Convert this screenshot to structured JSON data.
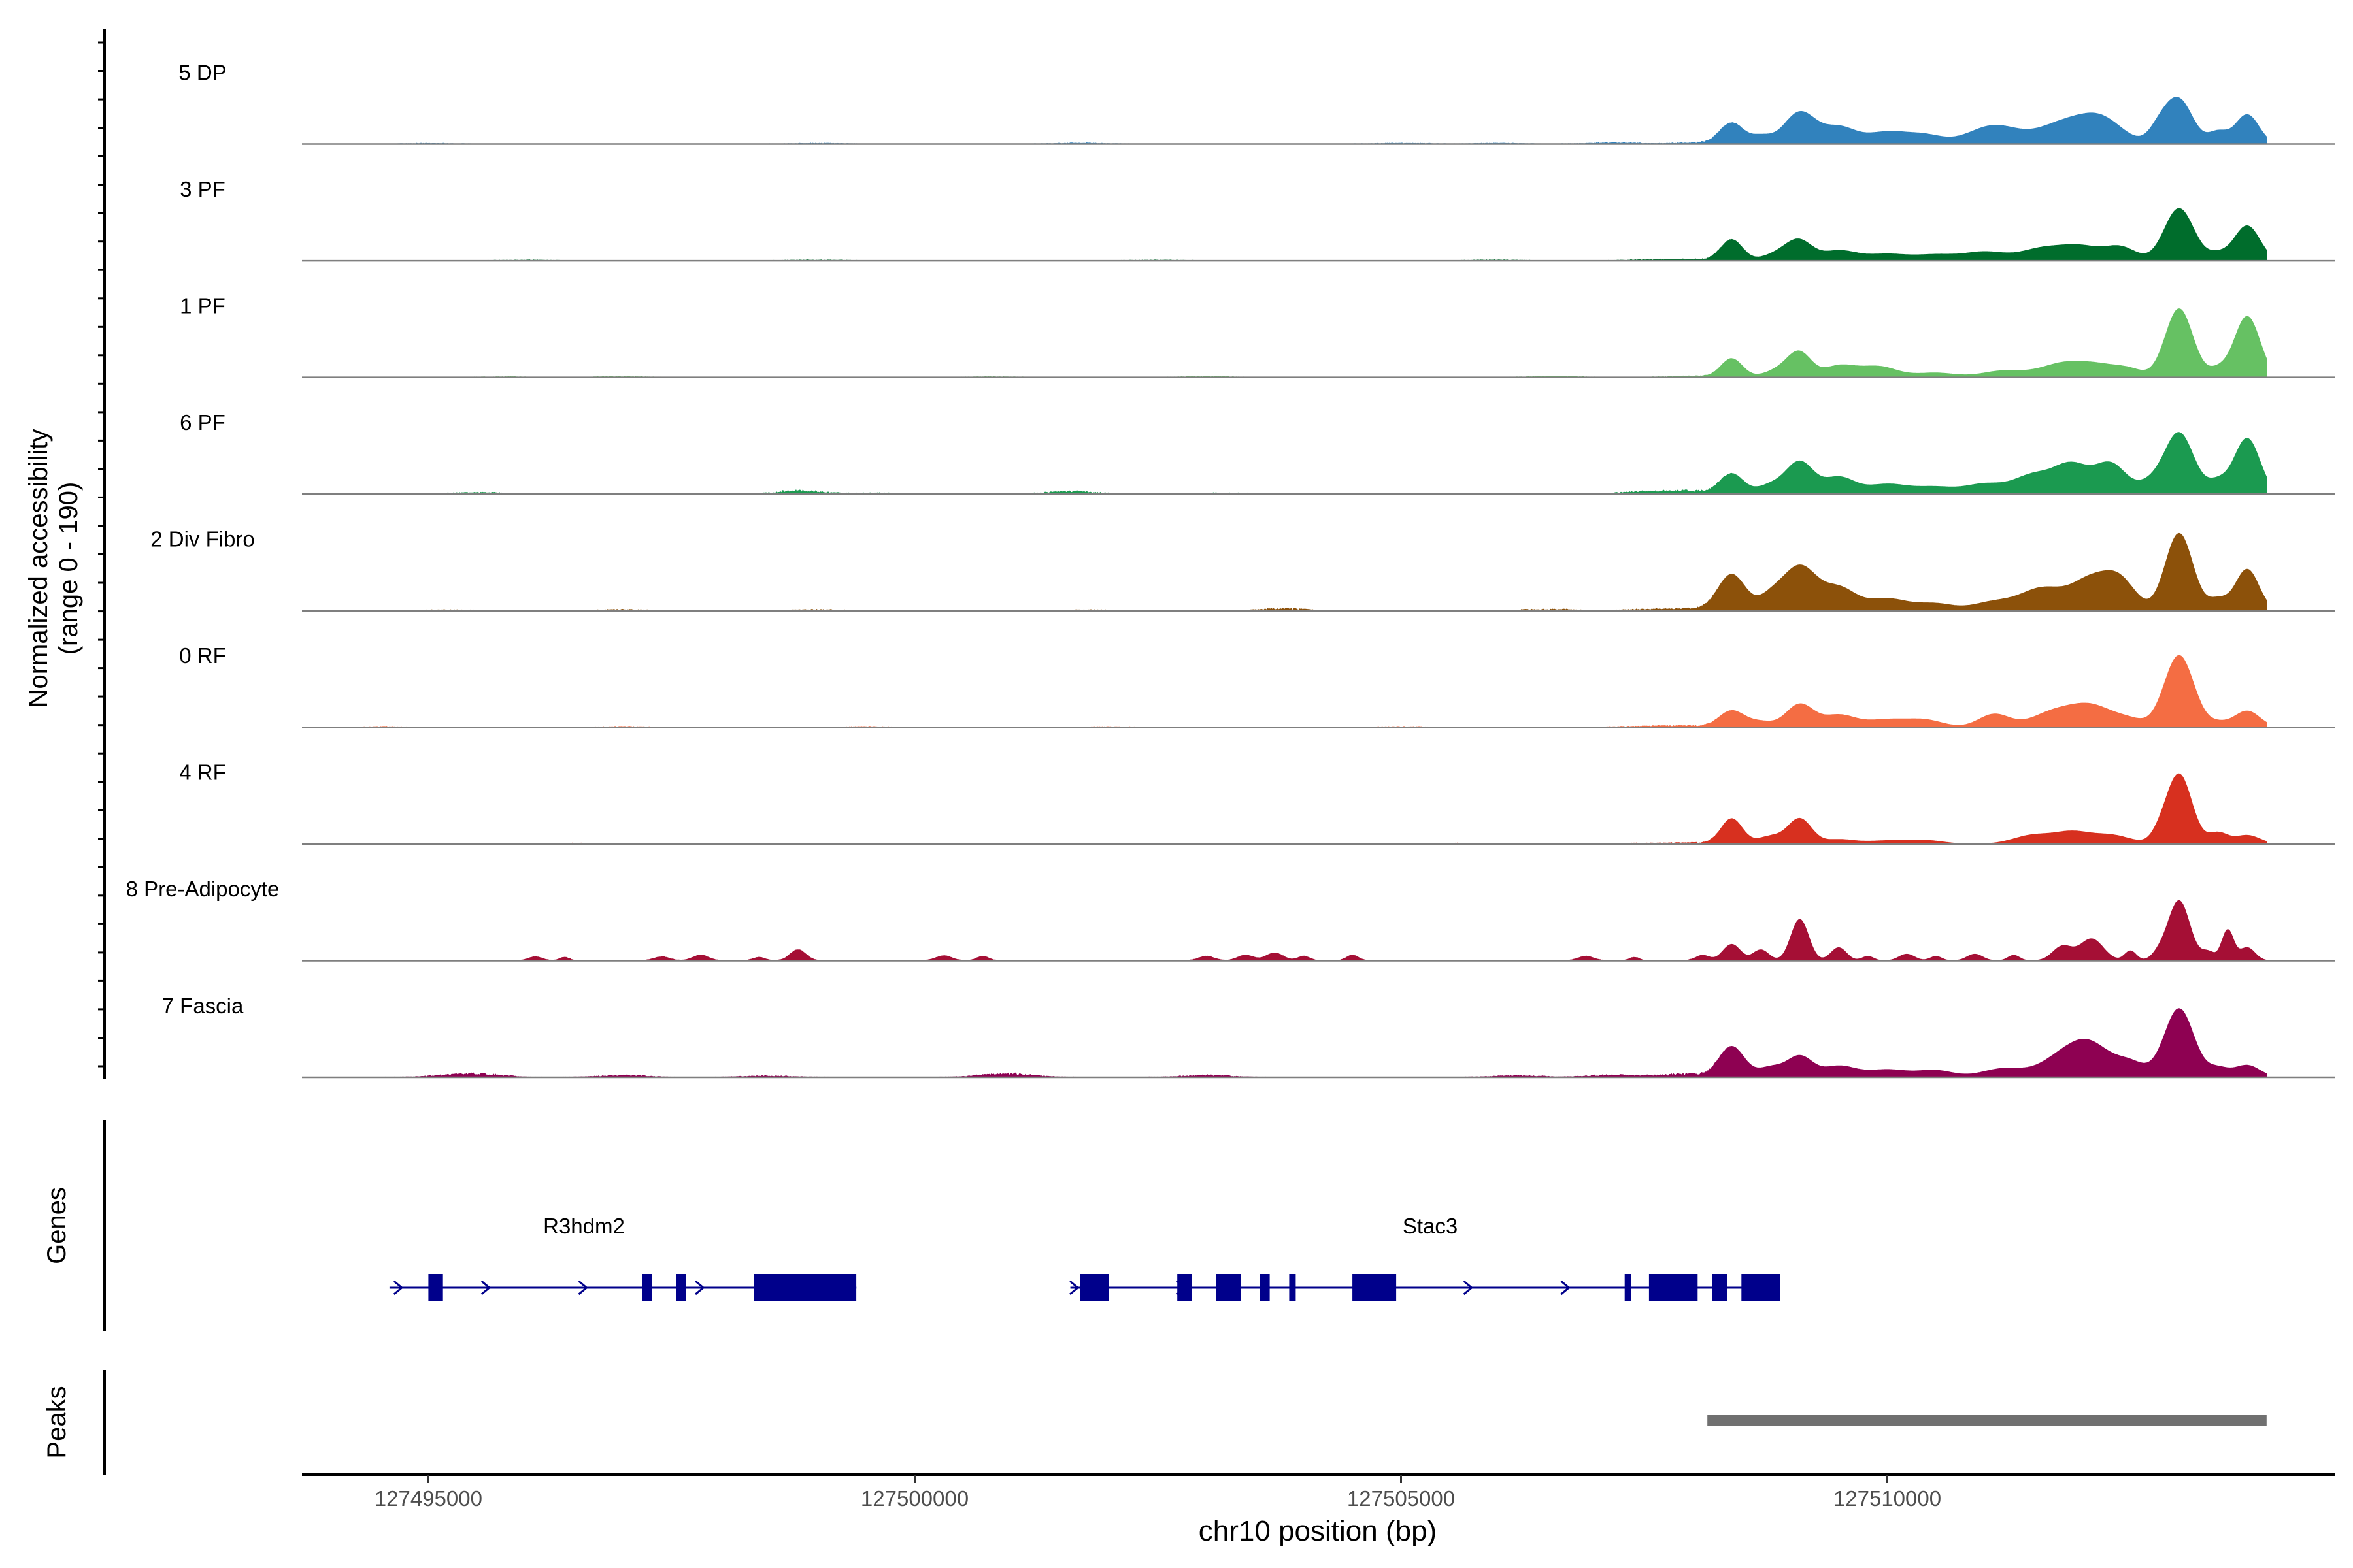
{
  "chart_data": {
    "type": "area",
    "title": "",
    "ylabel_line1": "Normalized accessibility",
    "ylabel_line2": "(range 0 - 190)",
    "yrange": [
      0,
      190
    ],
    "xlabel": "chr10 position (bp)",
    "xlim": [
      127493700,
      127514600
    ],
    "xticks": [
      127495000,
      127500000,
      127505000,
      127510000
    ],
    "xtick_labels": [
      "127495000",
      "127500000",
      "127505000",
      "127510000"
    ],
    "signal_end": 127513900,
    "series": [
      {
        "name": "5 DP",
        "color": "#3182BD",
        "noise": [
          [
            127495000,
            4
          ],
          [
            127499000,
            5
          ],
          [
            127501700,
            7
          ],
          [
            127505000,
            6
          ],
          [
            127506000,
            5
          ],
          [
            127507200,
            10
          ],
          [
            127508100,
            12
          ]
        ],
        "peaks": [
          [
            127508400,
            190,
            120
          ],
          [
            127508700,
            70,
            110
          ],
          [
            127509100,
            290,
            160
          ],
          [
            127509500,
            150,
            170
          ],
          [
            127510000,
            110,
            220
          ],
          [
            127510400,
            70,
            180
          ],
          [
            127511100,
            170,
            260
          ],
          [
            127511800,
            180,
            250
          ],
          [
            127512200,
            220,
            220
          ],
          [
            127512800,
            130,
            110
          ],
          [
            127513000,
            400,
            140
          ],
          [
            127513400,
            110,
            100
          ],
          [
            127513700,
            270,
            120
          ]
        ]
      },
      {
        "name": "3 PF",
        "color": "#006D2C",
        "noise": [
          [
            127496000,
            4
          ],
          [
            127499000,
            5
          ],
          [
            127502500,
            4
          ],
          [
            127506000,
            5
          ],
          [
            127507600,
            8
          ],
          [
            127508100,
            10
          ]
        ],
        "peaks": [
          [
            127508400,
            190,
            110
          ],
          [
            127508900,
            70,
            160
          ],
          [
            127509100,
            160,
            130
          ],
          [
            127509500,
            90,
            180
          ],
          [
            127510000,
            60,
            220
          ],
          [
            127510500,
            50,
            200
          ],
          [
            127511000,
            80,
            220
          ],
          [
            127511600,
            110,
            220
          ],
          [
            127512000,
            120,
            200
          ],
          [
            127512400,
            120,
            160
          ],
          [
            127513000,
            480,
            150
          ],
          [
            127513400,
            60,
            110
          ],
          [
            127513700,
            320,
            130
          ]
        ]
      },
      {
        "name": "1 PF",
        "color": "#66C163",
        "noise": [
          [
            127495800,
            4
          ],
          [
            127497000,
            5
          ],
          [
            127500800,
            4
          ],
          [
            127503000,
            6
          ],
          [
            127506600,
            8
          ],
          [
            127508000,
            10
          ]
        ],
        "peaks": [
          [
            127508400,
            170,
            110
          ],
          [
            127508900,
            70,
            150
          ],
          [
            127509100,
            210,
            120
          ],
          [
            127509500,
            100,
            160
          ],
          [
            127509900,
            100,
            200
          ],
          [
            127510500,
            40,
            200
          ],
          [
            127511200,
            60,
            220
          ],
          [
            127511800,
            120,
            230
          ],
          [
            127512200,
            100,
            220
          ],
          [
            127512500,
            50,
            140
          ],
          [
            127513000,
            630,
            140
          ],
          [
            127513400,
            70,
            100
          ],
          [
            127513700,
            560,
            130
          ]
        ]
      },
      {
        "name": "6 PF",
        "color": "#1B9A50",
        "noise": [
          [
            127494800,
            4
          ],
          [
            127495500,
            12
          ],
          [
            127498800,
            25
          ],
          [
            127499600,
            8
          ],
          [
            127501600,
            20
          ],
          [
            127503200,
            8
          ],
          [
            127507500,
            18
          ],
          [
            127508000,
            25
          ]
        ],
        "peaks": [
          [
            127508400,
            180,
            120
          ],
          [
            127508800,
            80,
            140
          ],
          [
            127509100,
            290,
            140
          ],
          [
            127509500,
            150,
            160
          ],
          [
            127510000,
            90,
            220
          ],
          [
            127510500,
            60,
            200
          ],
          [
            127511000,
            90,
            200
          ],
          [
            127511500,
            170,
            200
          ],
          [
            127511900,
            260,
            180
          ],
          [
            127512300,
            270,
            160
          ],
          [
            127512700,
            90,
            130
          ],
          [
            127513000,
            560,
            150
          ],
          [
            127513400,
            110,
            110
          ],
          [
            127513700,
            510,
            130
          ]
        ]
      },
      {
        "name": "2 Div Fibro",
        "color": "#8C510A",
        "noise": [
          [
            127495200,
            6
          ],
          [
            127497000,
            8
          ],
          [
            127499000,
            8
          ],
          [
            127501800,
            6
          ],
          [
            127503800,
            15
          ],
          [
            127506500,
            12
          ],
          [
            127507500,
            10
          ],
          [
            127508000,
            15
          ]
        ],
        "peaks": [
          [
            127508400,
            330,
            140
          ],
          [
            127508800,
            120,
            130
          ],
          [
            127509100,
            400,
            170
          ],
          [
            127509500,
            200,
            170
          ],
          [
            127510000,
            110,
            220
          ],
          [
            127510500,
            60,
            180
          ],
          [
            127511100,
            80,
            220
          ],
          [
            127511600,
            200,
            220
          ],
          [
            127512100,
            280,
            200
          ],
          [
            127512400,
            240,
            160
          ],
          [
            127513000,
            710,
            140
          ],
          [
            127513400,
            100,
            100
          ],
          [
            127513700,
            380,
            120
          ]
        ]
      },
      {
        "name": "0 RF",
        "color": "#F46D43",
        "noise": [
          [
            127494500,
            5
          ],
          [
            127497000,
            5
          ],
          [
            127499500,
            5
          ],
          [
            127502000,
            4
          ],
          [
            127505000,
            5
          ],
          [
            127507400,
            6
          ],
          [
            127507900,
            12
          ]
        ],
        "peaks": [
          [
            127508400,
            150,
            130
          ],
          [
            127508700,
            50,
            130
          ],
          [
            127509100,
            210,
            140
          ],
          [
            127509500,
            110,
            170
          ],
          [
            127510000,
            70,
            220
          ],
          [
            127510400,
            60,
            180
          ],
          [
            127511100,
            120,
            160
          ],
          [
            127511700,
            130,
            220
          ],
          [
            127512100,
            190,
            220
          ],
          [
            127512500,
            60,
            160
          ],
          [
            127513000,
            660,
            150
          ],
          [
            127513400,
            40,
            110
          ],
          [
            127513700,
            150,
            130
          ]
        ]
      },
      {
        "name": "4 RF",
        "color": "#D7301F",
        "noise": [
          [
            127494700,
            4
          ],
          [
            127496500,
            5
          ],
          [
            127499500,
            4
          ],
          [
            127502800,
            4
          ],
          [
            127505600,
            5
          ],
          [
            127507400,
            5
          ],
          [
            127508000,
            10
          ]
        ],
        "peaks": [
          [
            127508400,
            230,
            110
          ],
          [
            127508800,
            70,
            130
          ],
          [
            127509100,
            230,
            120
          ],
          [
            127509500,
            40,
            160
          ],
          [
            127510000,
            30,
            220
          ],
          [
            127510400,
            30,
            180
          ],
          [
            127511500,
            80,
            200
          ],
          [
            127511900,
            100,
            180
          ],
          [
            127512300,
            80,
            200
          ],
          [
            127512800,
            60,
            90
          ],
          [
            127513000,
            640,
            130
          ],
          [
            127513400,
            100,
            100
          ],
          [
            127513700,
            80,
            130
          ]
        ]
      },
      {
        "name": "8 Pre-Adipocyte",
        "color": "#A50F35",
        "noise": [],
        "peaks": [
          [
            127496100,
            35,
            70
          ],
          [
            127496400,
            30,
            50
          ],
          [
            127497400,
            35,
            80
          ],
          [
            127497800,
            50,
            80
          ],
          [
            127498400,
            30,
            60
          ],
          [
            127498800,
            100,
            80
          ],
          [
            127500300,
            45,
            80
          ],
          [
            127500700,
            40,
            60
          ],
          [
            127503000,
            40,
            80
          ],
          [
            127503400,
            50,
            80
          ],
          [
            127503700,
            70,
            90
          ],
          [
            127504000,
            40,
            60
          ],
          [
            127504500,
            50,
            60
          ],
          [
            127506900,
            40,
            80
          ],
          [
            127507400,
            30,
            50
          ],
          [
            127508100,
            50,
            70
          ],
          [
            127508400,
            150,
            90
          ],
          [
            127508700,
            100,
            80
          ],
          [
            127509100,
            380,
            90
          ],
          [
            127509500,
            120,
            80
          ],
          [
            127509800,
            40,
            60
          ],
          [
            127510200,
            60,
            80
          ],
          [
            127510500,
            40,
            60
          ],
          [
            127510900,
            60,
            80
          ],
          [
            127511300,
            50,
            60
          ],
          [
            127511800,
            130,
            100
          ],
          [
            127512100,
            200,
            120
          ],
          [
            127512500,
            90,
            60
          ],
          [
            127512800,
            60,
            80
          ],
          [
            127513000,
            550,
            110
          ],
          [
            127513300,
            80,
            70
          ],
          [
            127513500,
            280,
            60
          ],
          [
            127513700,
            120,
            80
          ]
        ]
      },
      {
        "name": "7 Fascia",
        "color": "#8E0152",
        "noise": [
          [
            127495200,
            8
          ],
          [
            127495500,
            25
          ],
          [
            127497000,
            15
          ],
          [
            127498500,
            10
          ],
          [
            127500800,
            8
          ],
          [
            127501000,
            22
          ],
          [
            127503000,
            15
          ],
          [
            127506200,
            12
          ],
          [
            127507200,
            18
          ],
          [
            127507900,
            25
          ]
        ],
        "peaks": [
          [
            127508400,
            280,
            130
          ],
          [
            127508800,
            90,
            130
          ],
          [
            127509100,
            190,
            130
          ],
          [
            127509500,
            100,
            170
          ],
          [
            127510000,
            70,
            220
          ],
          [
            127510500,
            60,
            180
          ],
          [
            127511200,
            80,
            220
          ],
          [
            127511800,
            180,
            220
          ],
          [
            127512100,
            260,
            200
          ],
          [
            127512500,
            130,
            160
          ],
          [
            127513000,
            630,
            150
          ],
          [
            127513400,
            80,
            110
          ],
          [
            127513700,
            110,
            130
          ]
        ]
      }
    ],
    "genes_label": "Genes",
    "genes": [
      {
        "name": "R3hdm2",
        "label_x": 127496600,
        "start": 127494600,
        "end": 127499400,
        "exons": [
          [
            127495000,
            127495150,
            "small"
          ],
          [
            127497200,
            127497300,
            "small"
          ],
          [
            127497550,
            127497650,
            "small"
          ],
          [
            127498350,
            127499400,
            "large"
          ]
        ],
        "arrows": [
          127494700,
          127495600,
          127496600,
          127497800
        ]
      },
      {
        "name": "Stac3",
        "label_x": 127505300,
        "start": 127501600,
        "end": 127508800,
        "exons": [
          [
            127501700,
            127502000,
            "small"
          ],
          [
            127502700,
            127502850,
            "small"
          ],
          [
            127503100,
            127503350,
            "small"
          ],
          [
            127503550,
            127503650,
            "small"
          ],
          [
            127503850,
            127503900,
            "small"
          ],
          [
            127504500,
            127504950,
            "small"
          ],
          [
            127507300,
            127507350,
            "small"
          ],
          [
            127507550,
            127508050,
            "large"
          ],
          [
            127508200,
            127508350,
            "small"
          ],
          [
            127508500,
            127508900,
            "large"
          ]
        ],
        "arrows": [
          127501650,
          127502750,
          127505700,
          127506700
        ]
      }
    ],
    "gene_color": "#00008B",
    "peaks_label": "Peaks",
    "peak_regions": [
      [
        127508150,
        127513900
      ]
    ],
    "peak_color": "#707070"
  }
}
